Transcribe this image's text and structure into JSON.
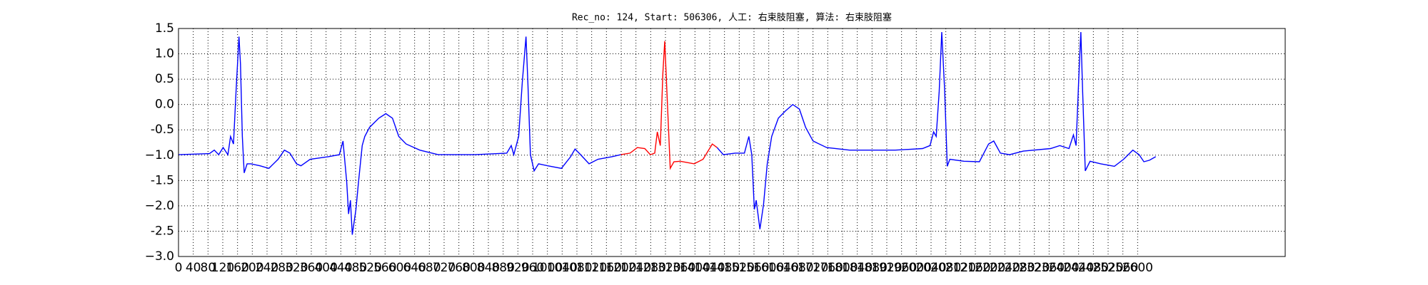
{
  "chart_data": {
    "type": "line",
    "title": "Rec_no: 124, Start: 506306, 人工: 右束肢阻塞, 算法: 右束肢阻塞",
    "xlim": [
      0,
      3000
    ],
    "xticks": [
      0,
      40,
      80,
      120,
      160,
      200,
      240,
      280,
      320,
      360,
      400,
      440,
      480,
      520,
      560,
      600,
      640,
      680,
      720,
      760,
      800,
      840,
      880,
      920,
      960,
      1000,
      1040,
      1080,
      1120,
      1160,
      1200,
      1240,
      1280,
      1320,
      1360,
      1400,
      1440,
      1480,
      1520,
      1560,
      1600,
      1640,
      1680,
      1720,
      1760,
      1800,
      1840,
      1880,
      1920,
      1960,
      2000,
      2040,
      2080,
      2120,
      2160,
      2200,
      2240,
      2280,
      2320,
      2360,
      2400,
      2440,
      2480,
      2520,
      2560,
      2600
    ],
    "ylim": [
      -3.0,
      1.5
    ],
    "yticks": [
      {
        "value": -3.0,
        "label": "−3.0"
      },
      -2.5,
      {
        "value": -2.0,
        "label": "−2.0"
      },
      -1.5,
      {
        "value": -1.0,
        "label": "−1.0"
      },
      -0.5,
      {
        "value": 0.0,
        "label": "0.0"
      },
      0.5,
      {
        "value": 1.0,
        "label": "1.0"
      },
      1.5
    ],
    "grid": true,
    "series": [
      {
        "color": "#0000ff",
        "x": [
          0,
          84,
          97,
          109,
          121,
          134,
          141,
          149,
          156,
          164,
          168,
          173,
          178,
          186,
          196,
          221,
          245,
          270,
          287,
          302,
          320,
          332,
          357,
          406,
          436,
          446,
          456,
          461,
          466,
          471,
          481,
          488,
          498,
          505,
          518,
          543,
          562,
          580,
          597,
          617,
          654,
          704,
          803,
          890,
          902,
          909,
          922,
          932,
          942,
          947,
          954,
          964,
          976,
          1001,
          1038,
          1063,
          1075,
          1090,
          1113,
          1137,
          1175,
          1199
        ],
        "values": [
          -0.99,
          -0.97,
          -0.9,
          -0.99,
          -0.85,
          -0.99,
          -0.63,
          -0.78,
          0.26,
          1.34,
          0.8,
          -0.63,
          -1.35,
          -1.17,
          -1.17,
          -1.21,
          -1.26,
          -1.08,
          -0.9,
          -0.96,
          -1.17,
          -1.21,
          -1.08,
          -1.03,
          -0.99,
          -0.72,
          -1.53,
          -2.16,
          -1.89,
          -2.57,
          -2.07,
          -1.53,
          -0.81,
          -0.63,
          -0.45,
          -0.27,
          -0.18,
          -0.27,
          -0.63,
          -0.78,
          -0.9,
          -0.99,
          -0.99,
          -0.96,
          -0.81,
          -0.99,
          -0.63,
          0.44,
          1.34,
          0.44,
          -0.99,
          -1.31,
          -1.17,
          -1.21,
          -1.26,
          -1.03,
          -0.88,
          -0.99,
          -1.17,
          -1.08,
          -1.03,
          -0.99
        ]
      },
      {
        "color": "#ff0000",
        "x": [
          1199,
          1224,
          1244,
          1264,
          1279,
          1291,
          1298,
          1306,
          1313,
          1318,
          1326,
          1333,
          1343,
          1360,
          1398,
          1422,
          1447,
          1460
        ],
        "values": [
          -0.99,
          -0.96,
          -0.85,
          -0.87,
          -0.99,
          -0.96,
          -0.54,
          -0.81,
          0.62,
          1.25,
          -0.09,
          -1.26,
          -1.13,
          -1.12,
          -1.17,
          -1.08,
          -0.78,
          -0.85
        ]
      },
      {
        "color": "#0000ff",
        "x": [
          1460,
          1477,
          1509,
          1534,
          1546,
          1554,
          1561,
          1566,
          1576,
          1586,
          1596,
          1608,
          1626,
          1645,
          1665,
          1683,
          1700,
          1720,
          1757,
          1819,
          1943,
          2017,
          2037,
          2047,
          2054,
          2062,
          2069,
          2077,
          2084,
          2091,
          2129,
          2171,
          2196,
          2210,
          2228,
          2253,
          2290,
          2364,
          2389,
          2414,
          2426,
          2433,
          2441,
          2446,
          2451,
          2458,
          2471,
          2500,
          2537,
          2562,
          2587,
          2604,
          2617,
          2632,
          2649
        ],
        "values": [
          -0.85,
          -0.99,
          -0.96,
          -0.96,
          -0.63,
          -0.99,
          -2.07,
          -1.89,
          -2.46,
          -1.97,
          -1.17,
          -0.63,
          -0.27,
          -0.13,
          0.0,
          -0.09,
          -0.45,
          -0.72,
          -0.85,
          -0.9,
          -0.9,
          -0.87,
          -0.81,
          -0.54,
          -0.63,
          0.26,
          1.43,
          0.26,
          -1.22,
          -1.08,
          -1.12,
          -1.13,
          -0.78,
          -0.72,
          -0.96,
          -0.99,
          -0.92,
          -0.87,
          -0.81,
          -0.87,
          -0.6,
          -0.81,
          0.62,
          1.43,
          0.26,
          -1.31,
          -1.12,
          -1.17,
          -1.22,
          -1.08,
          -0.9,
          -0.99,
          -1.13,
          -1.1,
          -1.03
        ]
      }
    ]
  }
}
